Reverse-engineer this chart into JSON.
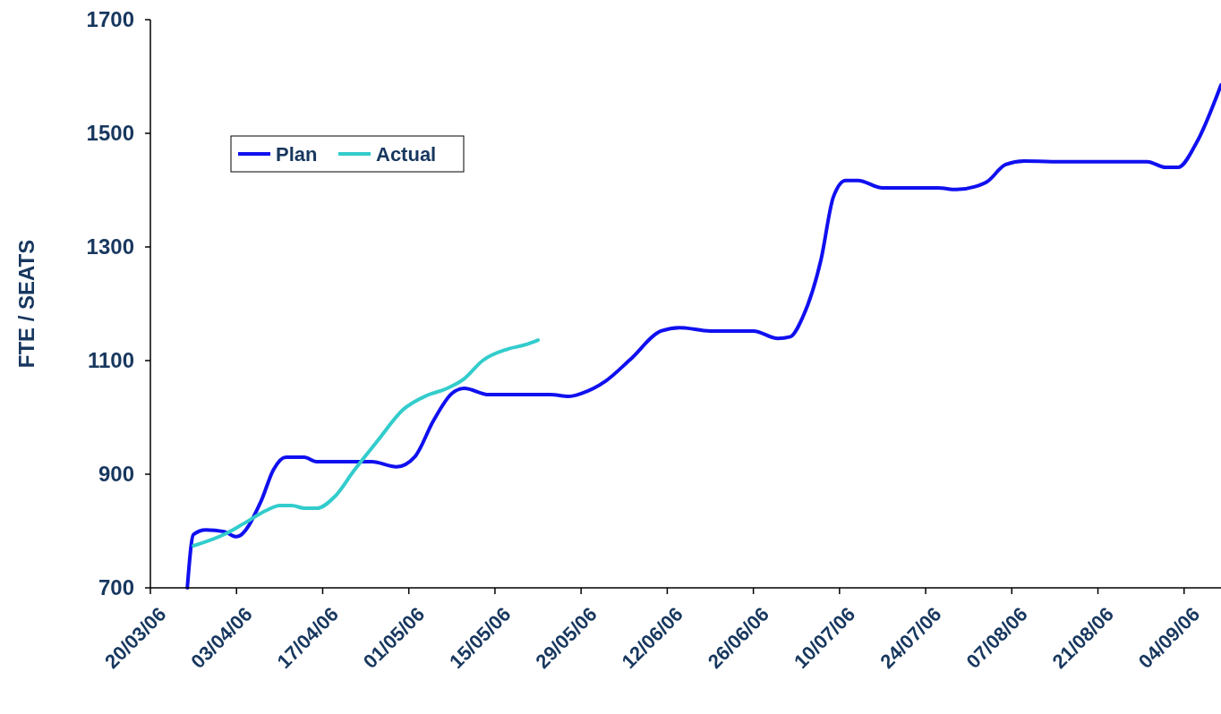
{
  "chart_data": {
    "type": "line",
    "ylabel": "FTE / SEATS",
    "xlim": [
      "2006-03-20",
      "2006-09-10"
    ],
    "ylim": [
      700,
      1700
    ],
    "yticks": [
      700,
      900,
      1100,
      1300,
      1500,
      1700
    ],
    "xticks": [
      {
        "value": "2006-03-20",
        "label": "20/03/06"
      },
      {
        "value": "2006-04-03",
        "label": "03/04/06"
      },
      {
        "value": "2006-04-17",
        "label": "17/04/06"
      },
      {
        "value": "2006-05-01",
        "label": "01/05/06"
      },
      {
        "value": "2006-05-15",
        "label": "15/05/06"
      },
      {
        "value": "2006-05-29",
        "label": "29/05/06"
      },
      {
        "value": "2006-06-12",
        "label": "12/06/06"
      },
      {
        "value": "2006-06-26",
        "label": "26/06/06"
      },
      {
        "value": "2006-07-10",
        "label": "10/07/06"
      },
      {
        "value": "2006-07-24",
        "label": "24/07/06"
      },
      {
        "value": "2006-08-07",
        "label": "07/08/06"
      },
      {
        "value": "2006-08-21",
        "label": "21/08/06"
      },
      {
        "value": "2006-09-04",
        "label": "04/09/06"
      }
    ],
    "grid": false,
    "legend": "top left",
    "marker": "none",
    "line_style": "solid",
    "series": [
      {
        "name": "Plan",
        "color": "#1010f0",
        "x": [
          "2006-03-26",
          "2006-03-27",
          "2006-03-29",
          "2006-04-01",
          "2006-04-03",
          "2006-04-07",
          "2006-04-09",
          "2006-04-11",
          "2006-04-14",
          "2006-04-16",
          "2006-04-25",
          "2006-04-29",
          "2006-05-02",
          "2006-05-05",
          "2006-05-08",
          "2006-05-10",
          "2006-05-14",
          "2006-05-24",
          "2006-05-27",
          "2006-05-29",
          "2006-06-02",
          "2006-06-06",
          "2006-06-11",
          "2006-06-14",
          "2006-06-19",
          "2006-06-26",
          "2006-06-30",
          "2006-07-02",
          "2006-07-04",
          "2006-07-07",
          "2006-07-09",
          "2006-07-11",
          "2006-07-13",
          "2006-07-17",
          "2006-07-26",
          "2006-07-29",
          "2006-08-01",
          "2006-08-03",
          "2006-08-06",
          "2006-08-09",
          "2006-08-16",
          "2006-08-29",
          "2006-09-01",
          "2006-09-03",
          "2006-09-06",
          "2006-09-10"
        ],
        "values": [
          700,
          794,
          802,
          799,
          790,
          853,
          908,
          930,
          930,
          922,
          922,
          913,
          931,
          994,
          1042,
          1051,
          1040,
          1040,
          1037,
          1042,
          1064,
          1102,
          1152,
          1158,
          1152,
          1152,
          1139,
          1142,
          1176,
          1278,
          1388,
          1417,
          1417,
          1404,
          1404,
          1401,
          1406,
          1415,
          1445,
          1451,
          1450,
          1450,
          1440,
          1440,
          1483,
          1585
        ]
      },
      {
        "name": "Actual",
        "color": "#33cccc",
        "x": [
          "2006-03-27",
          "2006-04-01",
          "2006-04-04",
          "2006-04-08",
          "2006-04-10",
          "2006-04-12",
          "2006-04-14",
          "2006-04-16",
          "2006-04-19",
          "2006-04-22",
          "2006-04-26",
          "2006-04-30",
          "2006-05-04",
          "2006-05-07",
          "2006-05-10",
          "2006-05-13",
          "2006-05-17",
          "2006-05-20",
          "2006-05-22"
        ],
        "values": [
          774,
          794,
          812,
          837,
          845,
          845,
          840,
          840,
          861,
          905,
          960,
          1013,
          1039,
          1050,
          1068,
          1100,
          1120,
          1128,
          1136
        ]
      }
    ]
  }
}
